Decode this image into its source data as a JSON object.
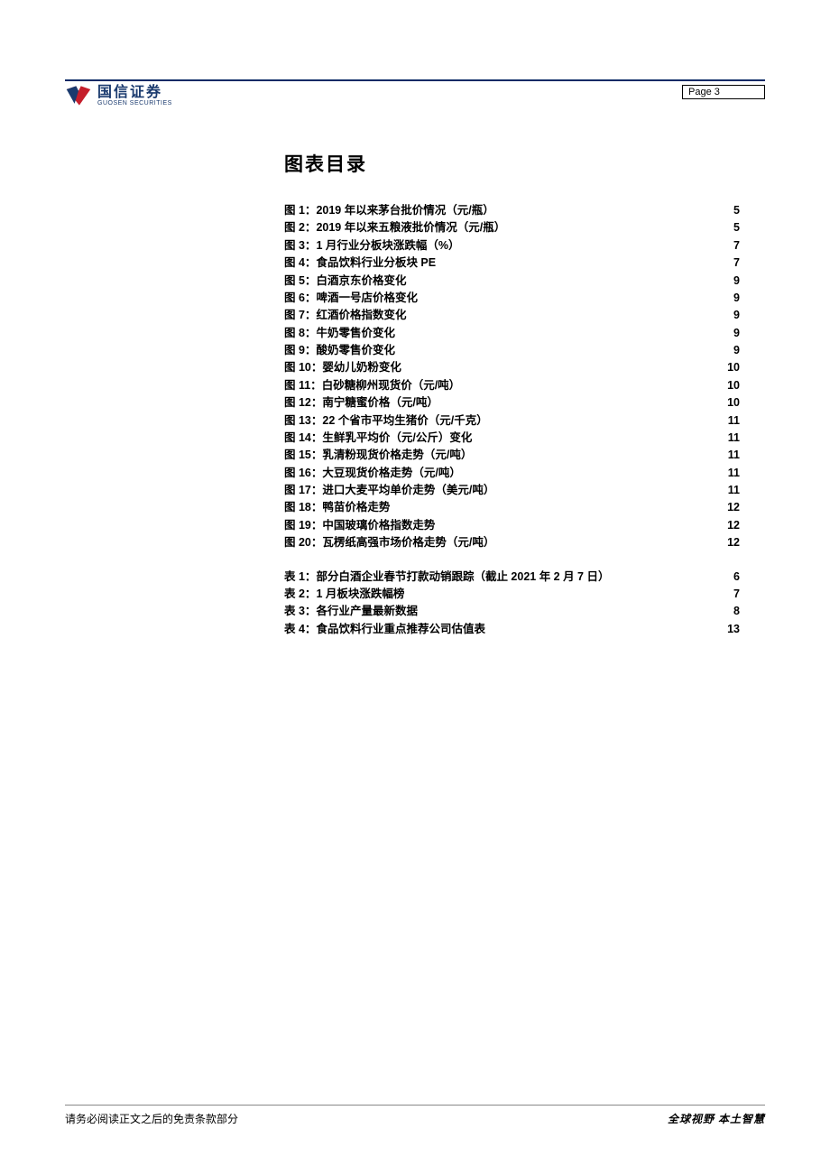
{
  "colors": {
    "brand_blue": "#1a3a6e",
    "header_rule": "#0a2a66",
    "footer_rule": "#888888",
    "text": "#000000"
  },
  "header": {
    "logo_cn": "国信证券",
    "logo_en": "GUOSEN SECURITIES",
    "page_label": "Page   3"
  },
  "title": "图表目录",
  "toc": {
    "figures": [
      {
        "label": "图 1：",
        "text": "2019 年以来茅台批价情况（元/瓶）",
        "page": "5"
      },
      {
        "label": "图 2：",
        "text": "2019 年以来五粮液批价情况（元/瓶）",
        "page": "5"
      },
      {
        "label": "图  3：",
        "text": "1 月行业分板块涨跌幅（%）",
        "page": "7"
      },
      {
        "label": "图  4：",
        "text": "食品饮料行业分板块 PE",
        "page": "7"
      },
      {
        "label": "图  5：",
        "text": "白酒京东价格变化",
        "page": "9"
      },
      {
        "label": "图  6：",
        "text": "啤酒一号店价格变化",
        "page": "9"
      },
      {
        "label": "图  7：",
        "text": "红酒价格指数变化",
        "page": "9"
      },
      {
        "label": "图  8：",
        "text": "牛奶零售价变化",
        "page": "9"
      },
      {
        "label": "图  9：",
        "text": "酸奶零售价变化",
        "page": "9"
      },
      {
        "label": "图 10：",
        "text": "婴幼儿奶粉变化",
        "page": "10"
      },
      {
        "label": "图 11：",
        "text": "白砂糖柳州现货价（元/吨）",
        "page": "10"
      },
      {
        "label": "图 12：",
        "text": "南宁糖蜜价格（元/吨）",
        "page": "10"
      },
      {
        "label": "图 13：",
        "text": "22 个省市平均生猪价（元/千克）",
        "page": "11"
      },
      {
        "label": "图 14：",
        "text": "生鲜乳平均价（元/公斤）变化",
        "page": "11"
      },
      {
        "label": "图 15：",
        "text": "乳清粉现货价格走势（元/吨）",
        "page": "11"
      },
      {
        "label": "图 16：",
        "text": "大豆现货价格走势（元/吨）",
        "page": "11"
      },
      {
        "label": "图 17：",
        "text": "进口大麦平均单价走势（美元/吨）",
        "page": "11"
      },
      {
        "label": "图 18：",
        "text": "鸭苗价格走势",
        "page": "12"
      },
      {
        "label": "图 19：",
        "text": "中国玻璃价格指数走势",
        "page": "12"
      },
      {
        "label": "图 20：",
        "text": "瓦楞纸高强市场价格走势（元/吨）",
        "page": "12"
      }
    ],
    "tables": [
      {
        "label": "表  1：",
        "text": "部分白酒企业春节打款动销跟踪（截止 2021 年 2 月 7 日）",
        "page": "6"
      },
      {
        "label": "表  2：",
        "text": "1 月板块涨跌幅榜",
        "page": "7"
      },
      {
        "label": "表 3：",
        "text": "各行业产量最新数据",
        "page": "8"
      },
      {
        "label": "表 4：",
        "text": "食品饮料行业重点推荐公司估值表",
        "page": "13"
      }
    ]
  },
  "footer": {
    "left": "请务必阅读正文之后的免责条款部分",
    "right": "全球视野   本土智慧"
  }
}
